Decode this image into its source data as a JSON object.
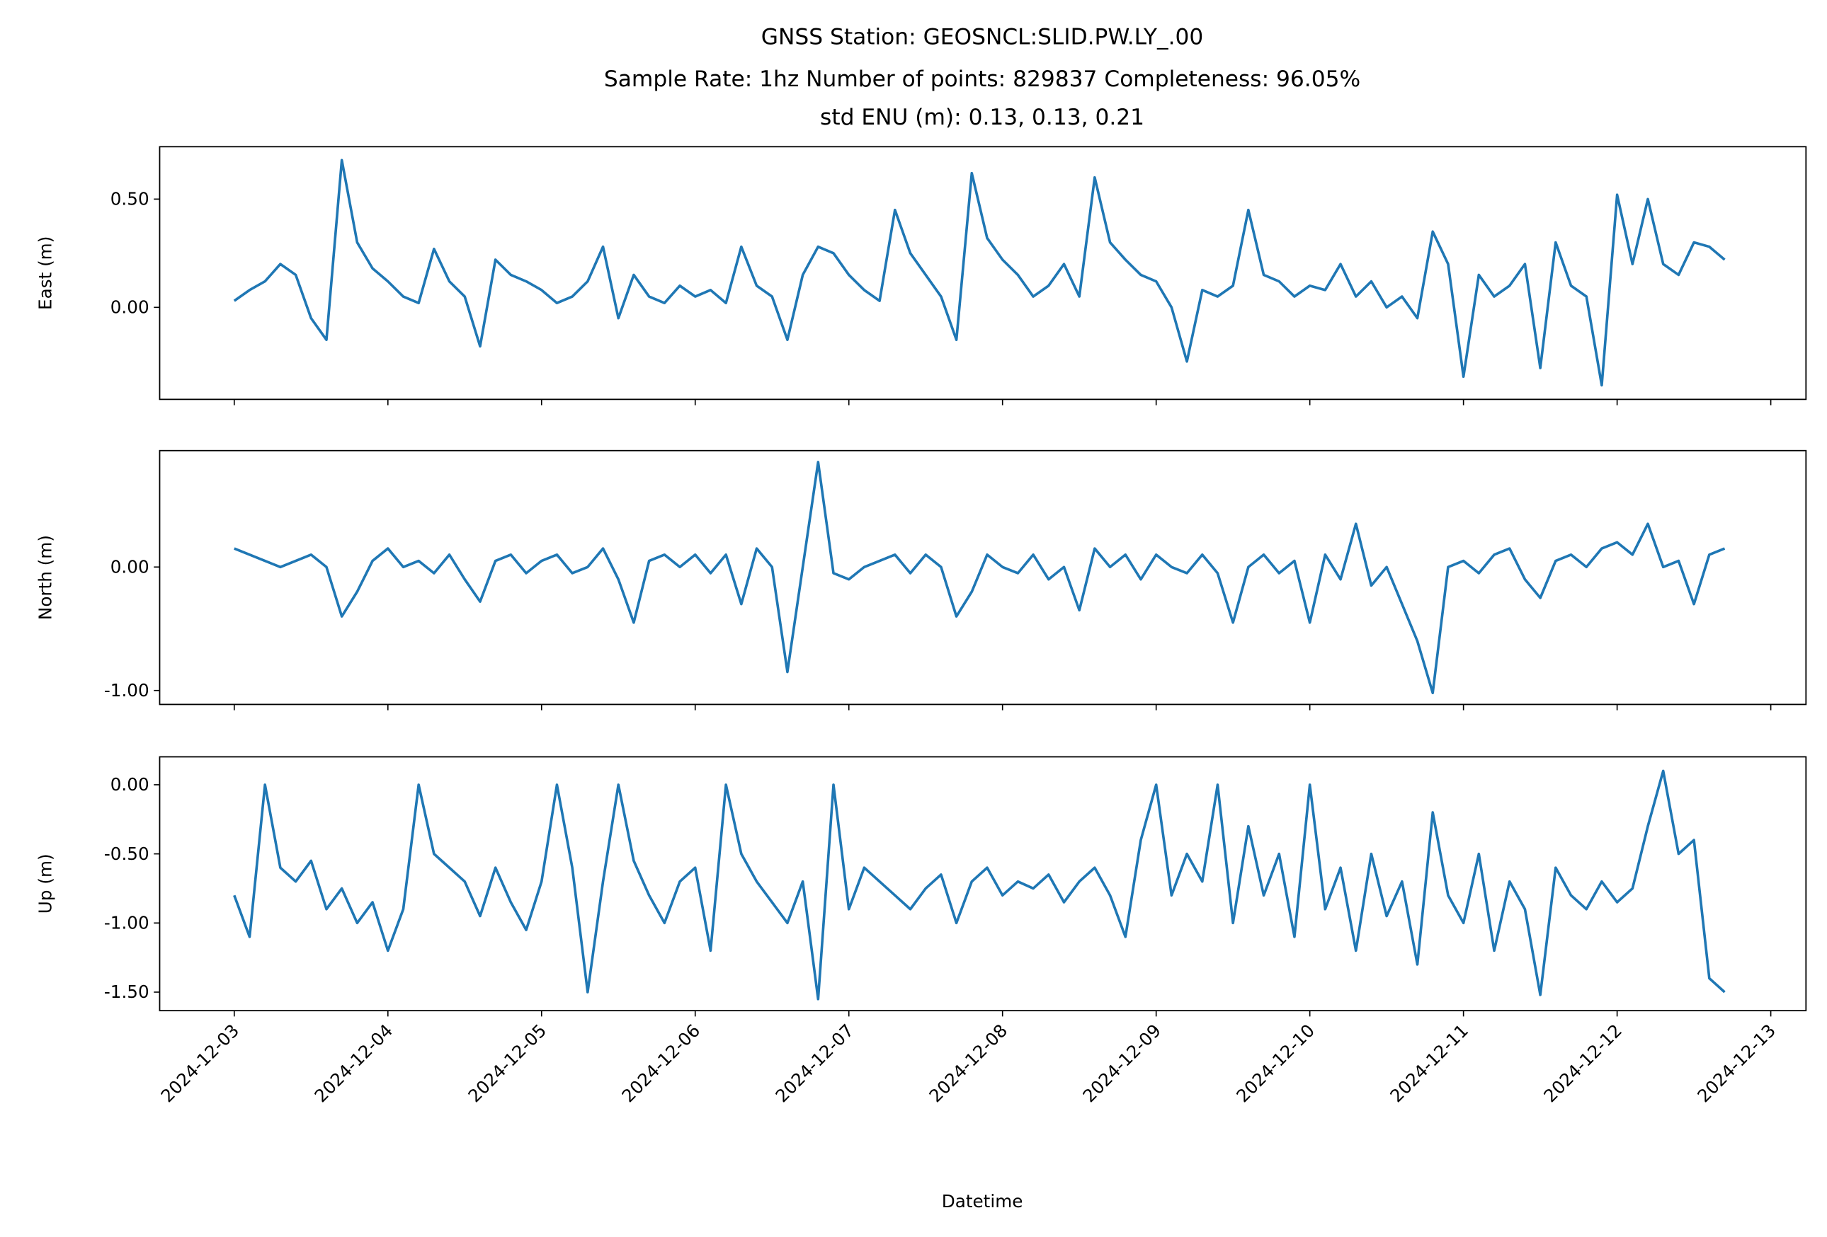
{
  "title": [
    "GNSS Station: GEOSNCL:SLID.PW.LY_.00",
    "Sample Rate: 1hz   Number of points: 829837    Completeness:  96.05%",
    "std ENU (m):  0.13, 0.13, 0.21"
  ],
  "xlabel": "Datetime",
  "xlim": [
    "2024-12-02T12:21",
    "2024-12-13T05:30"
  ],
  "xticks": [
    "2024-12-03",
    "2024-12-04",
    "2024-12-05",
    "2024-12-06",
    "2024-12-07",
    "2024-12-08",
    "2024-12-09",
    "2024-12-10",
    "2024-12-11",
    "2024-12-12",
    "2024-12-13"
  ],
  "x": [
    "2024-12-03T00:00",
    "2024-12-03T02:24",
    "2024-12-03T04:48",
    "2024-12-03T07:12",
    "2024-12-03T09:36",
    "2024-12-03T12:00",
    "2024-12-03T14:24",
    "2024-12-03T16:48",
    "2024-12-03T19:12",
    "2024-12-03T21:36",
    "2024-12-04T00:00",
    "2024-12-04T02:24",
    "2024-12-04T04:48",
    "2024-12-04T07:12",
    "2024-12-04T09:36",
    "2024-12-04T12:00",
    "2024-12-04T14:24",
    "2024-12-04T16:48",
    "2024-12-04T19:12",
    "2024-12-04T21:36",
    "2024-12-05T00:00",
    "2024-12-05T02:24",
    "2024-12-05T04:48",
    "2024-12-05T07:12",
    "2024-12-05T09:36",
    "2024-12-05T12:00",
    "2024-12-05T14:24",
    "2024-12-05T16:48",
    "2024-12-05T19:12",
    "2024-12-05T21:36",
    "2024-12-06T00:00",
    "2024-12-06T02:24",
    "2024-12-06T04:48",
    "2024-12-06T07:12",
    "2024-12-06T09:36",
    "2024-12-06T12:00",
    "2024-12-06T14:24",
    "2024-12-06T16:48",
    "2024-12-06T19:12",
    "2024-12-06T21:36",
    "2024-12-07T00:00",
    "2024-12-07T02:24",
    "2024-12-07T04:48",
    "2024-12-07T07:12",
    "2024-12-07T09:36",
    "2024-12-07T12:00",
    "2024-12-07T14:24",
    "2024-12-07T16:48",
    "2024-12-07T19:12",
    "2024-12-07T21:36",
    "2024-12-08T00:00",
    "2024-12-08T02:24",
    "2024-12-08T04:48",
    "2024-12-08T07:12",
    "2024-12-08T09:36",
    "2024-12-08T12:00",
    "2024-12-08T14:24",
    "2024-12-08T16:48",
    "2024-12-08T19:12",
    "2024-12-08T21:36",
    "2024-12-09T00:00",
    "2024-12-09T02:24",
    "2024-12-09T04:48",
    "2024-12-09T07:12",
    "2024-12-09T09:36",
    "2024-12-09T12:00",
    "2024-12-09T14:24",
    "2024-12-09T16:48",
    "2024-12-09T19:12",
    "2024-12-09T21:36",
    "2024-12-10T00:00",
    "2024-12-10T02:24",
    "2024-12-10T04:48",
    "2024-12-10T07:12",
    "2024-12-10T09:36",
    "2024-12-10T12:00",
    "2024-12-10T14:24",
    "2024-12-10T16:48",
    "2024-12-10T19:12",
    "2024-12-10T21:36",
    "2024-12-11T00:00",
    "2024-12-11T02:24",
    "2024-12-11T04:48",
    "2024-12-11T07:12",
    "2024-12-11T09:36",
    "2024-12-11T12:00",
    "2024-12-11T14:24",
    "2024-12-11T16:48",
    "2024-12-11T19:12",
    "2024-12-11T21:36",
    "2024-12-12T00:00",
    "2024-12-12T02:24",
    "2024-12-12T04:48",
    "2024-12-12T07:12",
    "2024-12-12T09:36",
    "2024-12-12T12:00",
    "2024-12-12T14:24",
    "2024-12-12T16:48"
  ],
  "chart_data": [
    {
      "type": "line",
      "ylabel": "East (m)",
      "color": "#1f77b4",
      "ylim": [
        -0.425,
        0.742
      ],
      "yticks": [
        {
          "value": 0,
          "label": "0.00"
        },
        {
          "value": 0.5,
          "label": "0.50"
        }
      ],
      "values": [
        0.03,
        0.08,
        0.12,
        0.2,
        0.15,
        -0.05,
        -0.15,
        0.68,
        0.3,
        0.18,
        0.12,
        0.05,
        0.02,
        0.27,
        0.12,
        0.05,
        -0.18,
        0.22,
        0.15,
        0.12,
        0.08,
        0.02,
        0.05,
        0.12,
        0.28,
        -0.05,
        0.15,
        0.05,
        0.02,
        0.1,
        0.05,
        0.08,
        0.02,
        0.28,
        0.1,
        0.05,
        -0.15,
        0.15,
        0.28,
        0.25,
        0.15,
        0.08,
        0.03,
        0.45,
        0.25,
        0.15,
        0.05,
        -0.15,
        0.62,
        0.32,
        0.22,
        0.15,
        0.05,
        0.1,
        0.2,
        0.05,
        0.6,
        0.3,
        0.22,
        0.15,
        0.12,
        0.0,
        -0.25,
        0.08,
        0.05,
        0.1,
        0.45,
        0.15,
        0.12,
        0.05,
        0.1,
        0.08,
        0.2,
        0.05,
        0.12,
        0.0,
        0.05,
        -0.05,
        0.35,
        0.2,
        -0.32,
        0.15,
        0.05,
        0.1,
        0.2,
        -0.28,
        0.3,
        0.1,
        0.05,
        -0.36,
        0.52,
        0.2,
        0.5,
        0.2,
        0.15,
        0.3,
        0.28,
        0.22
      ]
    },
    {
      "type": "line",
      "ylabel": "North (m)",
      "color": "#1f77b4",
      "ylim": [
        -1.113,
        0.943
      ],
      "yticks": [
        {
          "value": -1,
          "label": "-1.00"
        },
        {
          "value": 0,
          "label": "0.00"
        }
      ],
      "values": [
        0.15,
        0.1,
        0.05,
        0.0,
        0.05,
        0.1,
        0.0,
        -0.4,
        -0.2,
        0.05,
        0.15,
        0.0,
        0.05,
        -0.05,
        0.1,
        -0.1,
        -0.28,
        0.05,
        0.1,
        -0.05,
        0.05,
        0.1,
        -0.05,
        0.0,
        0.15,
        -0.1,
        -0.45,
        0.05,
        0.1,
        0.0,
        0.1,
        -0.05,
        0.1,
        -0.3,
        0.15,
        0.0,
        -0.85,
        0.0,
        0.85,
        -0.05,
        -0.1,
        0.0,
        0.05,
        0.1,
        -0.05,
        0.1,
        0.0,
        -0.4,
        -0.2,
        0.1,
        0.0,
        -0.05,
        0.1,
        -0.1,
        0.0,
        -0.35,
        0.15,
        0.0,
        0.1,
        -0.1,
        0.1,
        0.0,
        -0.05,
        0.1,
        -0.05,
        -0.45,
        0.0,
        0.1,
        -0.05,
        0.05,
        -0.45,
        0.1,
        -0.1,
        0.35,
        -0.15,
        0.0,
        -0.3,
        -0.6,
        -1.02,
        0.0,
        0.05,
        -0.05,
        0.1,
        0.15,
        -0.1,
        -0.25,
        0.05,
        0.1,
        0.0,
        0.15,
        0.2,
        0.1,
        0.35,
        0.0,
        0.05,
        -0.3,
        0.1,
        0.15
      ]
    },
    {
      "type": "line",
      "ylabel": "Up (m)",
      "color": "#1f77b4",
      "ylim": [
        -1.634,
        0.202
      ],
      "yticks": [
        {
          "value": -1.5,
          "label": "-1.50"
        },
        {
          "value": -1,
          "label": "-1.00"
        },
        {
          "value": -0.5,
          "label": "-0.50"
        },
        {
          "value": 0,
          "label": "0.00"
        }
      ],
      "values": [
        -0.8,
        -1.1,
        0.0,
        -0.6,
        -0.7,
        -0.55,
        -0.9,
        -0.75,
        -1.0,
        -0.85,
        -1.2,
        -0.9,
        0.0,
        -0.5,
        -0.6,
        -0.7,
        -0.95,
        -0.6,
        -0.85,
        -1.05,
        -0.7,
        0.0,
        -0.6,
        -1.5,
        -0.7,
        0.0,
        -0.55,
        -0.8,
        -1.0,
        -0.7,
        -0.6,
        -1.2,
        0.0,
        -0.5,
        -0.7,
        -0.85,
        -1.0,
        -0.7,
        -1.55,
        0.0,
        -0.9,
        -0.6,
        -0.7,
        -0.8,
        -0.9,
        -0.75,
        -0.65,
        -1.0,
        -0.7,
        -0.6,
        -0.8,
        -0.7,
        -0.75,
        -0.65,
        -0.85,
        -0.7,
        -0.6,
        -0.8,
        -1.1,
        -0.4,
        0.0,
        -0.8,
        -0.5,
        -0.7,
        0.0,
        -1.0,
        -0.3,
        -0.8,
        -0.5,
        -1.1,
        0.0,
        -0.9,
        -0.6,
        -1.2,
        -0.5,
        -0.95,
        -0.7,
        -1.3,
        -0.2,
        -0.8,
        -1.0,
        -0.5,
        -1.2,
        -0.7,
        -0.9,
        -1.52,
        -0.6,
        -0.8,
        -0.9,
        -0.7,
        -0.85,
        -0.75,
        -0.3,
        0.1,
        -0.5,
        -0.4,
        -1.4,
        -1.5
      ]
    }
  ]
}
